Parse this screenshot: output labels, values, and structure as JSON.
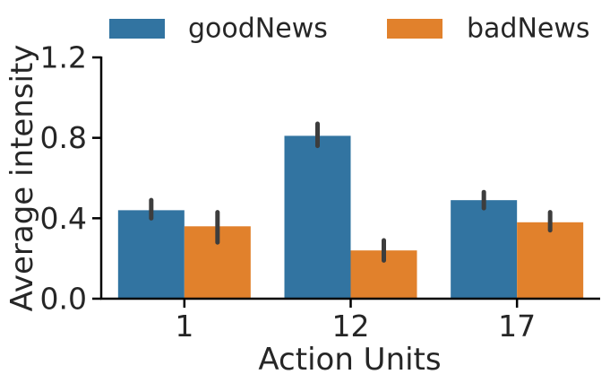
{
  "chart_data": {
    "type": "bar",
    "title": "",
    "xlabel": "Action Units",
    "ylabel": "Average intensity",
    "categories": [
      "1",
      "12",
      "17"
    ],
    "ylim": [
      0,
      1.2
    ],
    "yticks": [
      0.0,
      0.4,
      0.8,
      1.2
    ],
    "ytick_labels": [
      "0.0",
      "0.4",
      "0.8",
      "1.2"
    ],
    "grid": false,
    "legend_position": "top",
    "series": [
      {
        "name": "goodNews",
        "color": "#3274a1",
        "values": [
          0.44,
          0.81,
          0.49
        ],
        "error_low": [
          0.4,
          0.76,
          0.45
        ],
        "error_high": [
          0.49,
          0.87,
          0.53
        ]
      },
      {
        "name": "badNews",
        "color": "#e1812c",
        "values": [
          0.36,
          0.24,
          0.38
        ],
        "error_low": [
          0.28,
          0.19,
          0.34
        ],
        "error_high": [
          0.43,
          0.29,
          0.43
        ]
      }
    ],
    "error_bar_color": "#3d3d3d"
  }
}
